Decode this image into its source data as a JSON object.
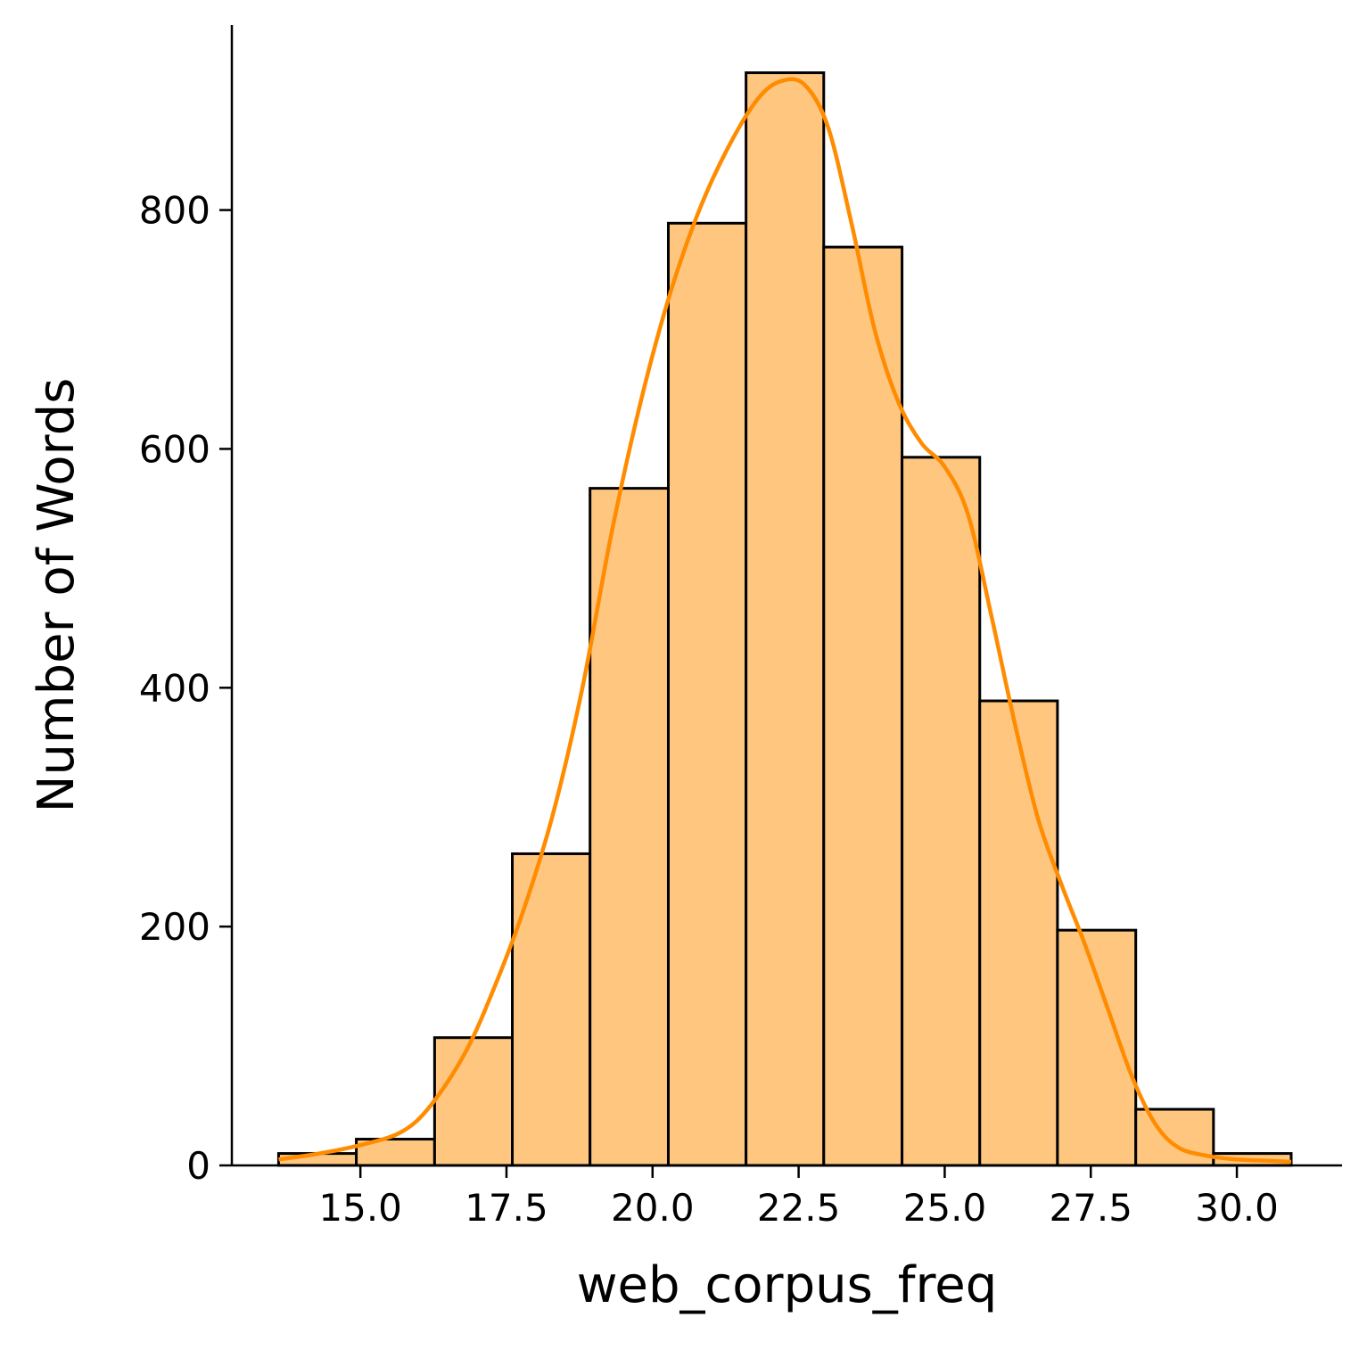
{
  "chart_data": {
    "type": "bar",
    "subtype": "histogram-with-kde",
    "title": "",
    "xlabel": "web_corpus_freq",
    "ylabel": "Number of Words",
    "xlim": [
      12.8,
      31.8
    ],
    "ylim": [
      0,
      955
    ],
    "x_ticks": [
      15.0,
      17.5,
      20.0,
      22.5,
      25.0,
      27.5,
      30.0
    ],
    "x_tick_labels": [
      "15.0",
      "17.5",
      "20.0",
      "22.5",
      "25.0",
      "27.5",
      "30.0"
    ],
    "y_ticks": [
      0,
      200,
      400,
      600,
      800
    ],
    "y_tick_labels": [
      "0",
      "200",
      "400",
      "600",
      "800"
    ],
    "bins": [
      {
        "x0": 13.6,
        "x1": 14.93,
        "count": 10
      },
      {
        "x0": 14.93,
        "x1": 16.27,
        "count": 22
      },
      {
        "x0": 16.27,
        "x1": 17.6,
        "count": 107
      },
      {
        "x0": 17.6,
        "x1": 18.93,
        "count": 261
      },
      {
        "x0": 18.93,
        "x1": 20.27,
        "count": 567
      },
      {
        "x0": 20.27,
        "x1": 21.6,
        "count": 789
      },
      {
        "x0": 21.6,
        "x1": 22.93,
        "count": 915
      },
      {
        "x0": 22.93,
        "x1": 24.27,
        "count": 769
      },
      {
        "x0": 24.27,
        "x1": 25.6,
        "count": 593
      },
      {
        "x0": 25.6,
        "x1": 26.93,
        "count": 389
      },
      {
        "x0": 26.93,
        "x1": 28.27,
        "count": 197
      },
      {
        "x0": 28.27,
        "x1": 29.6,
        "count": 47
      },
      {
        "x0": 29.6,
        "x1": 30.93,
        "count": 10
      }
    ],
    "kde": {
      "x": [
        13.6,
        14.3,
        15.0,
        15.7,
        16.2,
        16.8,
        17.3,
        17.8,
        18.3,
        18.8,
        19.3,
        19.8,
        20.3,
        20.8,
        21.3,
        21.8,
        22.2,
        22.6,
        23.0,
        23.4,
        23.8,
        24.2,
        24.6,
        25.0,
        25.4,
        25.8,
        26.2,
        26.6,
        27.0,
        27.4,
        27.8,
        28.2,
        28.6,
        29.0,
        29.5,
        30.0,
        30.5,
        30.93
      ],
      "y": [
        5,
        10,
        17,
        28,
        50,
        95,
        150,
        215,
        295,
        400,
        530,
        640,
        730,
        800,
        853,
        893,
        908,
        905,
        870,
        790,
        700,
        640,
        605,
        585,
        545,
        460,
        370,
        290,
        235,
        185,
        130,
        75,
        35,
        15,
        8,
        5,
        4,
        3
      ]
    },
    "colors": {
      "bar_fill": "#ffc680",
      "bar_edge": "#000000",
      "kde_line": "#ff8c00",
      "axis": "#000000"
    },
    "grid": false,
    "legend": "none"
  }
}
